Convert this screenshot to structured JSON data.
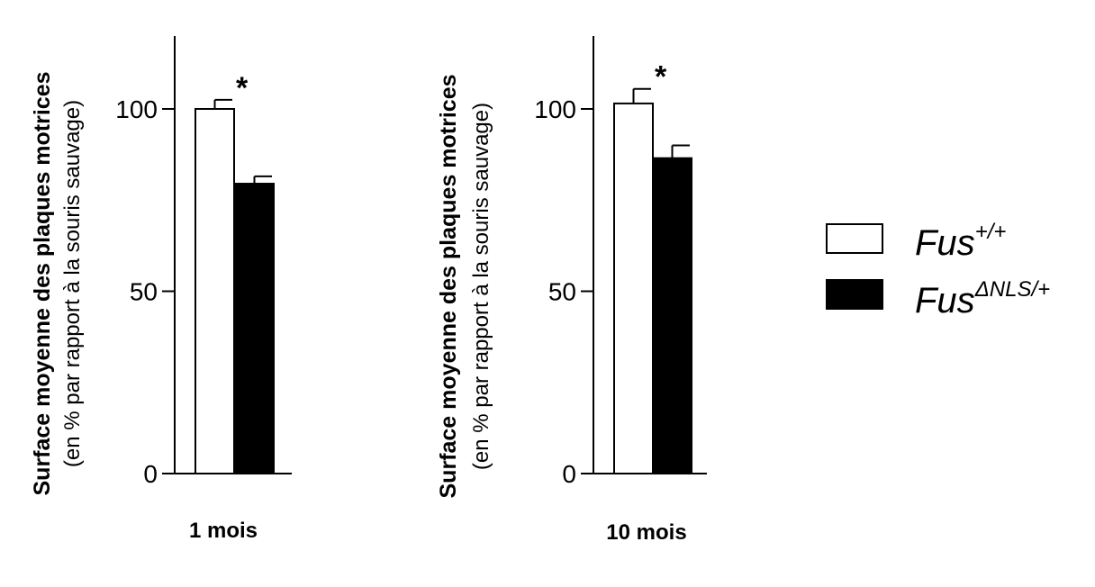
{
  "chart_data": [
    {
      "type": "bar",
      "title": "",
      "xlabel": "1 mois",
      "ylabel": "Surface moyenne des plaques motrices",
      "ylabel_sub": "(en % par rapport à la souris sauvage)",
      "ylim": [
        0,
        120
      ],
      "yticks": [
        "0",
        "50",
        "100"
      ],
      "series": [
        {
          "name": "Fus+/+",
          "value": 100,
          "error": 2.5
        },
        {
          "name": "FusΔNLS/+",
          "value": 79.5,
          "error": 2.0
        }
      ],
      "significance": "*"
    },
    {
      "type": "bar",
      "title": "",
      "xlabel": "10 mois",
      "ylabel": "Surface moyenne des plaques motrices",
      "ylabel_sub": "(en % par rapport à la souris sauvage)",
      "ylim": [
        0,
        120
      ],
      "yticks": [
        "0",
        "50",
        "100"
      ],
      "series": [
        {
          "name": "Fus+/+",
          "value": 101.5,
          "error": 4.0
        },
        {
          "name": "FusΔNLS/+",
          "value": 86.5,
          "error": 3.5
        }
      ],
      "significance": "*"
    }
  ],
  "legend": {
    "placement": "right",
    "items": [
      {
        "base": "Fus",
        "sup": "+/+",
        "fill": "#ffffff"
      },
      {
        "base": "Fus",
        "sup": "ΔNLS/+",
        "fill": "#000000"
      }
    ]
  },
  "colors": {
    "wildtype": "#ffffff",
    "mutant": "#000000",
    "stroke": "#000000"
  }
}
